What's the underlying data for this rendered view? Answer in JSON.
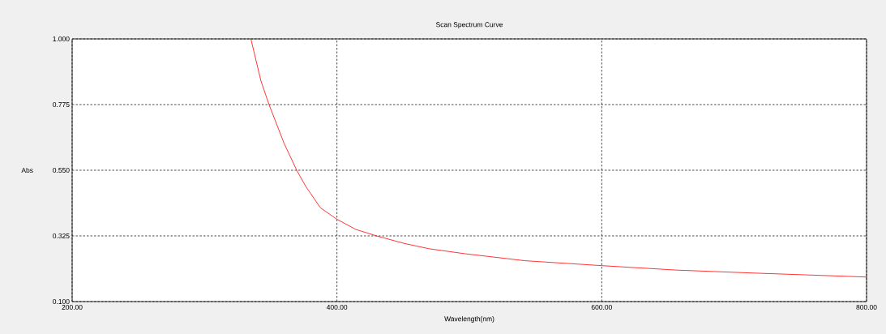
{
  "chart_data": {
    "type": "line",
    "title": "Scan Spectrum Curve",
    "xlabel": "Wavelength(nm)",
    "ylabel": "Abs",
    "xlim": [
      200,
      800
    ],
    "ylim": [
      0.1,
      1.0
    ],
    "xticks": [
      {
        "value": 200,
        "label": "200.00"
      },
      {
        "value": 400,
        "label": "400.00"
      },
      {
        "value": 600,
        "label": "600.00"
      },
      {
        "value": 800,
        "label": "800.00"
      }
    ],
    "yticks": [
      {
        "value": 0.1,
        "label": "0.100"
      },
      {
        "value": 0.325,
        "label": "0.325"
      },
      {
        "value": 0.55,
        "label": "0.550"
      },
      {
        "value": 0.775,
        "label": "0.775"
      },
      {
        "value": 1.0,
        "label": "1.000"
      }
    ],
    "grid": true,
    "series": [
      {
        "color": "#ff0000",
        "x": [
          335,
          342.6,
          348.7,
          360,
          369.6,
          376.4,
          387.6,
          400,
          414.3,
          430.7,
          451,
          469.6,
          496.6,
          542,
          600.4,
          656,
          713,
          770,
          800
        ],
        "values": [
          1.0,
          0.856,
          0.775,
          0.643,
          0.55,
          0.495,
          0.421,
          0.382,
          0.347,
          0.324,
          0.299,
          0.281,
          0.264,
          0.24,
          0.223,
          0.208,
          0.198,
          0.189,
          0.184
        ]
      }
    ]
  }
}
